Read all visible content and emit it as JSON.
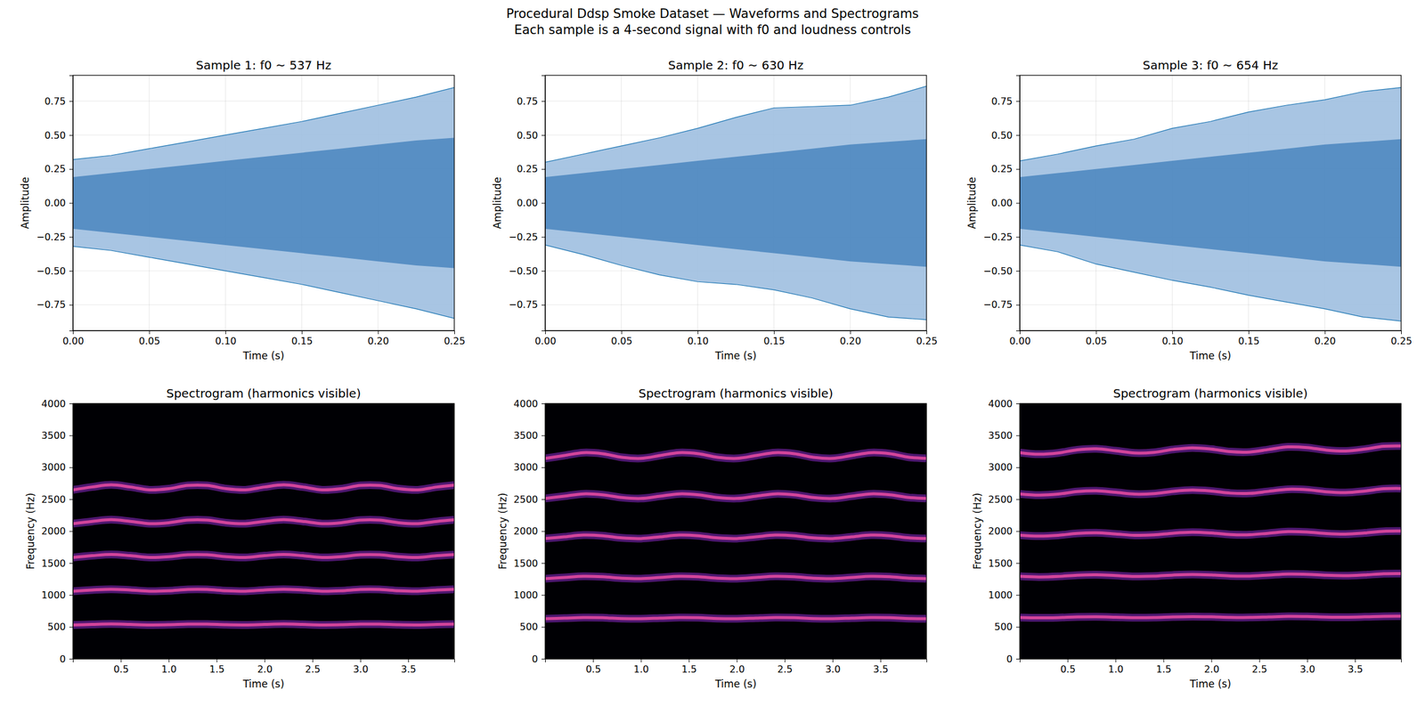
{
  "title": "Procedural Ddsp Smoke Dataset — Waveforms and Spectrograms",
  "subtitle": "Each sample is a 4-second signal with f0 and loudness controls",
  "chart_data": [
    {
      "type": "area",
      "title": "Sample 1: f0 ~ 537 Hz",
      "x_label": "Time (s)",
      "y_label": "Amplitude",
      "grid": true,
      "xlim": [
        0,
        0.25
      ],
      "ylim": [
        -0.94,
        0.94
      ],
      "xticks": [
        {
          "value": 0,
          "label": "0.00"
        },
        {
          "value": 0.05,
          "label": "0.05"
        },
        {
          "value": 0.1,
          "label": "0.10"
        },
        {
          "value": 0.15,
          "label": "0.15"
        },
        {
          "value": 0.2,
          "label": "0.20"
        },
        {
          "value": 0.25,
          "label": "0.25"
        }
      ],
      "yticks": [
        {
          "value": -0.75,
          "label": "−0.75"
        },
        {
          "value": -0.5,
          "label": "−0.50"
        },
        {
          "value": -0.25,
          "label": "−0.25"
        },
        {
          "value": 0,
          "label": "0.00"
        },
        {
          "value": 0.25,
          "label": "0.25"
        },
        {
          "value": 0.5,
          "label": "0.50"
        },
        {
          "value": 0.75,
          "label": "0.75"
        }
      ],
      "x": [
        0,
        0.025,
        0.05,
        0.075,
        0.1,
        0.125,
        0.15,
        0.175,
        0.2,
        0.225,
        0.25
      ],
      "series": [
        {
          "color": "#9ebfe0",
          "high": [
            0.32,
            0.35,
            0.4,
            0.45,
            0.5,
            0.55,
            0.6,
            0.66,
            0.72,
            0.78,
            0.85
          ],
          "low": [
            -0.32,
            -0.35,
            -0.4,
            -0.45,
            -0.5,
            -0.55,
            -0.6,
            -0.66,
            -0.72,
            -0.78,
            -0.85
          ]
        },
        {
          "color": "#4f88c0",
          "high": [
            0.19,
            0.22,
            0.25,
            0.28,
            0.31,
            0.34,
            0.37,
            0.4,
            0.43,
            0.46,
            0.48
          ],
          "low": [
            -0.19,
            -0.22,
            -0.25,
            -0.28,
            -0.31,
            -0.34,
            -0.37,
            -0.4,
            -0.43,
            -0.46,
            -0.48
          ]
        }
      ]
    },
    {
      "type": "area",
      "title": "Sample 2: f0 ~ 630 Hz",
      "x_label": "Time (s)",
      "y_label": "Amplitude",
      "grid": true,
      "xlim": [
        0,
        0.25
      ],
      "ylim": [
        -0.94,
        0.94
      ],
      "xticks": [
        {
          "value": 0,
          "label": "0.00"
        },
        {
          "value": 0.05,
          "label": "0.05"
        },
        {
          "value": 0.1,
          "label": "0.10"
        },
        {
          "value": 0.15,
          "label": "0.15"
        },
        {
          "value": 0.2,
          "label": "0.20"
        },
        {
          "value": 0.25,
          "label": "0.25"
        }
      ],
      "yticks": [
        {
          "value": -0.75,
          "label": "−0.75"
        },
        {
          "value": -0.5,
          "label": "−0.50"
        },
        {
          "value": -0.25,
          "label": "−0.25"
        },
        {
          "value": 0,
          "label": "0.00"
        },
        {
          "value": 0.25,
          "label": "0.25"
        },
        {
          "value": 0.5,
          "label": "0.50"
        },
        {
          "value": 0.75,
          "label": "0.75"
        }
      ],
      "x": [
        0,
        0.025,
        0.05,
        0.075,
        0.1,
        0.125,
        0.15,
        0.175,
        0.2,
        0.225,
        0.25
      ],
      "series": [
        {
          "color": "#9ebfe0",
          "high": [
            0.3,
            0.36,
            0.42,
            0.48,
            0.55,
            0.63,
            0.7,
            0.71,
            0.72,
            0.78,
            0.86
          ],
          "low": [
            -0.31,
            -0.38,
            -0.46,
            -0.53,
            -0.58,
            -0.6,
            -0.64,
            -0.7,
            -0.78,
            -0.84,
            -0.86
          ]
        },
        {
          "color": "#4f88c0",
          "high": [
            0.19,
            0.22,
            0.25,
            0.28,
            0.31,
            0.34,
            0.37,
            0.4,
            0.43,
            0.45,
            0.47
          ],
          "low": [
            -0.19,
            -0.22,
            -0.25,
            -0.28,
            -0.31,
            -0.34,
            -0.37,
            -0.4,
            -0.43,
            -0.45,
            -0.47
          ]
        }
      ]
    },
    {
      "type": "area",
      "title": "Sample 3: f0 ~ 654 Hz",
      "x_label": "Time (s)",
      "y_label": "Amplitude",
      "grid": true,
      "xlim": [
        0,
        0.25
      ],
      "ylim": [
        -0.94,
        0.94
      ],
      "xticks": [
        {
          "value": 0,
          "label": "0.00"
        },
        {
          "value": 0.05,
          "label": "0.05"
        },
        {
          "value": 0.1,
          "label": "0.10"
        },
        {
          "value": 0.15,
          "label": "0.15"
        },
        {
          "value": 0.2,
          "label": "0.20"
        },
        {
          "value": 0.25,
          "label": "0.25"
        }
      ],
      "yticks": [
        {
          "value": -0.75,
          "label": "−0.75"
        },
        {
          "value": -0.5,
          "label": "−0.50"
        },
        {
          "value": -0.25,
          "label": "−0.25"
        },
        {
          "value": 0,
          "label": "0.00"
        },
        {
          "value": 0.25,
          "label": "0.25"
        },
        {
          "value": 0.5,
          "label": "0.50"
        },
        {
          "value": 0.75,
          "label": "0.75"
        }
      ],
      "x": [
        0,
        0.025,
        0.05,
        0.075,
        0.1,
        0.125,
        0.15,
        0.175,
        0.2,
        0.225,
        0.25
      ],
      "series": [
        {
          "color": "#9ebfe0",
          "high": [
            0.31,
            0.36,
            0.42,
            0.47,
            0.55,
            0.6,
            0.67,
            0.72,
            0.76,
            0.82,
            0.85
          ],
          "low": [
            -0.31,
            -0.36,
            -0.45,
            -0.51,
            -0.57,
            -0.62,
            -0.68,
            -0.73,
            -0.78,
            -0.84,
            -0.87
          ]
        },
        {
          "color": "#4f88c0",
          "high": [
            0.19,
            0.22,
            0.25,
            0.28,
            0.31,
            0.34,
            0.37,
            0.4,
            0.43,
            0.45,
            0.47
          ],
          "low": [
            -0.19,
            -0.22,
            -0.25,
            -0.28,
            -0.31,
            -0.34,
            -0.37,
            -0.4,
            -0.43,
            -0.45,
            -0.47
          ]
        }
      ]
    },
    {
      "type": "spectrogram",
      "title": "Spectrogram (harmonics visible)",
      "x_label": "Time (s)",
      "y_label": "Frequency (Hz)",
      "grid": false,
      "xlim": [
        0,
        3.98
      ],
      "ylim": [
        0,
        4000
      ],
      "xticks": [
        0.5,
        {
          "value": 1,
          "label": "1.0"
        },
        1.5,
        {
          "value": 2,
          "label": "2.0"
        },
        2.5,
        {
          "value": 3,
          "label": "3.0"
        },
        3.5
      ],
      "yticks": [
        0,
        500,
        1000,
        1500,
        2000,
        2500,
        3000,
        3500,
        4000
      ],
      "x": [
        0,
        0.2,
        0.4,
        0.6,
        0.8,
        1.0,
        1.2,
        1.4,
        1.6,
        1.8,
        2.0,
        2.2,
        2.4,
        2.6,
        2.8,
        3.0,
        3.2,
        3.4,
        3.6,
        3.8,
        4.0
      ],
      "series": [
        {
          "color": "#d2449a",
          "values": [
            530,
            538,
            545,
            538,
            530,
            533,
            543,
            543,
            533,
            530,
            538,
            545,
            538,
            530,
            533,
            543,
            543,
            533,
            530,
            538,
            545
          ]
        },
        {
          "color": "#d2449a",
          "values": [
            1059,
            1077,
            1090,
            1077,
            1059,
            1066,
            1086,
            1086,
            1066,
            1059,
            1077,
            1090,
            1077,
            1059,
            1066,
            1086,
            1086,
            1066,
            1059,
            1077,
            1090
          ]
        },
        {
          "color": "#d2449a",
          "values": [
            1588,
            1615,
            1635,
            1615,
            1588,
            1599,
            1629,
            1629,
            1599,
            1588,
            1615,
            1635,
            1615,
            1588,
            1599,
            1629,
            1629,
            1599,
            1588,
            1615,
            1635
          ]
        },
        {
          "color": "#d2449a",
          "values": [
            2118,
            2153,
            2180,
            2153,
            2118,
            2132,
            2173,
            2173,
            2132,
            2118,
            2153,
            2180,
            2153,
            2118,
            2132,
            2173,
            2173,
            2132,
            2118,
            2153,
            2180
          ]
        },
        {
          "color": "#d2449a",
          "values": [
            2647,
            2692,
            2725,
            2692,
            2647,
            2665,
            2716,
            2716,
            2665,
            2647,
            2692,
            2725,
            2692,
            2647,
            2665,
            2716,
            2716,
            2665,
            2647,
            2692,
            2725
          ]
        }
      ]
    },
    {
      "type": "spectrogram",
      "title": "Spectrogram (harmonics visible)",
      "x_label": "Time (s)",
      "y_label": "Frequency (Hz)",
      "grid": false,
      "xlim": [
        0,
        3.98
      ],
      "ylim": [
        0,
        4000
      ],
      "xticks": [
        0.5,
        {
          "value": 1,
          "label": "1.0"
        },
        1.5,
        {
          "value": 2,
          "label": "2.0"
        },
        2.5,
        {
          "value": 3,
          "label": "3.0"
        },
        3.5
      ],
      "yticks": [
        0,
        500,
        1000,
        1500,
        2000,
        2500,
        3000,
        3500,
        4000
      ],
      "x": [
        0,
        0.2,
        0.4,
        0.6,
        0.8,
        1.0,
        1.2,
        1.4,
        1.6,
        1.8,
        2.0,
        2.2,
        2.4,
        2.6,
        2.8,
        3.0,
        3.2,
        3.4,
        3.6,
        3.8,
        4.0
      ],
      "series": [
        {
          "color": "#d2449a",
          "values": [
            628,
            637,
            646,
            643,
            631,
            628,
            637,
            646,
            643,
            631,
            628,
            637,
            646,
            643,
            631,
            628,
            637,
            646,
            643,
            631,
            628
          ]
        },
        {
          "color": "#d2449a",
          "values": [
            1256,
            1274,
            1292,
            1285,
            1263,
            1256,
            1274,
            1292,
            1285,
            1263,
            1256,
            1274,
            1292,
            1285,
            1263,
            1256,
            1274,
            1292,
            1285,
            1263,
            1256
          ]
        },
        {
          "color": "#d2449a",
          "values": [
            1884,
            1911,
            1938,
            1928,
            1894,
            1884,
            1911,
            1938,
            1928,
            1894,
            1884,
            1911,
            1938,
            1928,
            1894,
            1884,
            1911,
            1938,
            1928,
            1894,
            1884
          ]
        },
        {
          "color": "#d2449a",
          "values": [
            2512,
            2548,
            2584,
            2570,
            2526,
            2512,
            2548,
            2584,
            2570,
            2526,
            2512,
            2548,
            2584,
            2570,
            2526,
            2512,
            2548,
            2584,
            2570,
            2526,
            2512
          ]
        },
        {
          "color": "#d2449a",
          "values": [
            3140,
            3185,
            3230,
            3213,
            3157,
            3140,
            3185,
            3230,
            3213,
            3157,
            3140,
            3185,
            3230,
            3213,
            3157,
            3140,
            3185,
            3230,
            3213,
            3157,
            3140
          ]
        }
      ]
    },
    {
      "type": "spectrogram",
      "title": "Spectrogram (harmonics visible)",
      "x_label": "Time (s)",
      "y_label": "Frequency (Hz)",
      "grid": false,
      "xlim": [
        0,
        3.98
      ],
      "ylim": [
        0,
        4000
      ],
      "xticks": [
        0.5,
        {
          "value": 1,
          "label": "1.0"
        },
        1.5,
        {
          "value": 2,
          "label": "2.0"
        },
        2.5,
        {
          "value": 3,
          "label": "3.0"
        },
        3.5
      ],
      "yticks": [
        0,
        500,
        1000,
        1500,
        2000,
        2500,
        3000,
        3500,
        4000
      ],
      "x": [
        0,
        0.2,
        0.4,
        0.6,
        0.8,
        1.0,
        1.2,
        1.4,
        1.6,
        1.8,
        2.0,
        2.2,
        2.4,
        2.6,
        2.8,
        3.0,
        3.2,
        3.4,
        3.6,
        3.8,
        4.0
      ],
      "series": [
        {
          "color": "#d2449a",
          "values": [
            646,
            641,
            645,
            655,
            658,
            652,
            645,
            647,
            656,
            661,
            657,
            649,
            648,
            656,
            664,
            662,
            654,
            651,
            657,
            666,
            667
          ]
        },
        {
          "color": "#d2449a",
          "values": [
            1292,
            1282,
            1290,
            1310,
            1316,
            1304,
            1290,
            1294,
            1312,
            1322,
            1314,
            1298,
            1296,
            1312,
            1328,
            1324,
            1308,
            1302,
            1314,
            1332,
            1334
          ]
        },
        {
          "color": "#d2449a",
          "values": [
            1938,
            1923,
            1935,
            1965,
            1974,
            1956,
            1935,
            1941,
            1968,
            1983,
            1971,
            1947,
            1944,
            1968,
            1992,
            1986,
            1962,
            1953,
            1971,
            1998,
            2001
          ]
        },
        {
          "color": "#d2449a",
          "values": [
            2584,
            2564,
            2580,
            2620,
            2632,
            2608,
            2580,
            2588,
            2624,
            2644,
            2628,
            2596,
            2592,
            2624,
            2656,
            2648,
            2616,
            2604,
            2628,
            2664,
            2668
          ]
        },
        {
          "color": "#d2449a",
          "values": [
            3230,
            3205,
            3225,
            3275,
            3290,
            3260,
            3225,
            3235,
            3280,
            3305,
            3285,
            3245,
            3240,
            3280,
            3320,
            3310,
            3270,
            3255,
            3285,
            3330,
            3335
          ]
        }
      ]
    }
  ]
}
